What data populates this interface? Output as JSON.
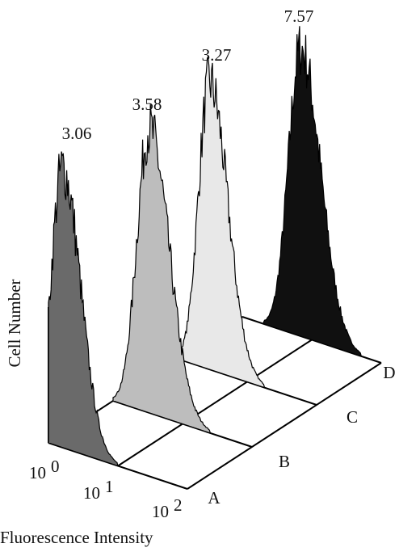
{
  "chart_data": {
    "type": "histogram-3d",
    "y_label": "Cell Number",
    "x_label": "Fluorescence Intensity",
    "x_ticks": [
      {
        "base": "10",
        "exp": "0"
      },
      {
        "base": "10",
        "exp": "1"
      },
      {
        "base": "10",
        "exp": "2"
      }
    ],
    "series": [
      {
        "name": "A",
        "value": 3.06,
        "color": "#6a6a6a"
      },
      {
        "name": "B",
        "value": 3.58,
        "color": "#bdbdbd"
      },
      {
        "name": "C",
        "value": 3.27,
        "color": "#e8e8e8"
      },
      {
        "name": "D",
        "value": 7.57,
        "color": "#101010"
      }
    ]
  }
}
